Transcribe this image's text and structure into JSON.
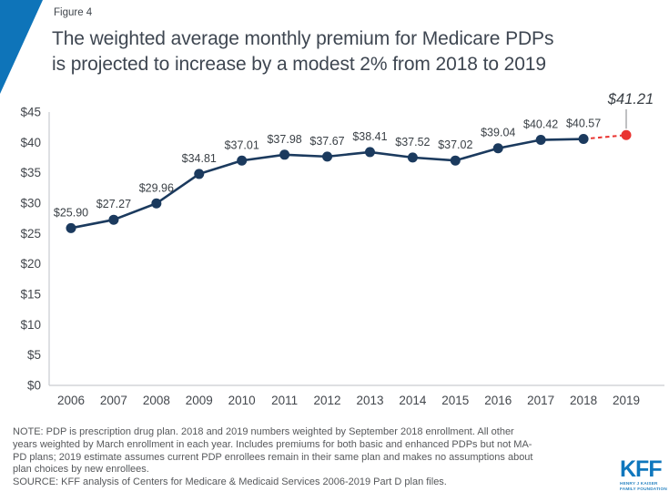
{
  "header": {
    "figure_label": "Figure 4",
    "title_lines": [
      "The weighted average monthly premium for Medicare PDPs",
      "is projected to increase by a modest 2% from 2018 to 2019"
    ]
  },
  "chart_data": {
    "type": "line",
    "title": "The weighted average monthly premium for Medicare PDPs is projected to increase by a modest 2% from 2018 to 2019",
    "x": [
      2006,
      2007,
      2008,
      2009,
      2010,
      2011,
      2012,
      2013,
      2014,
      2015,
      2016,
      2017,
      2018,
      2019
    ],
    "xtick_labels": [
      "2006",
      "2007",
      "2008",
      "2009",
      "2010",
      "2011",
      "2012",
      "2013",
      "2014",
      "2015",
      "2016",
      "2017",
      "2018",
      "2019"
    ],
    "series": [
      {
        "name": "Weighted average monthly PDP premium",
        "values": [
          25.9,
          27.27,
          29.96,
          34.81,
          37.01,
          37.98,
          37.67,
          38.41,
          37.52,
          37.02,
          39.04,
          40.42,
          40.57,
          41.21
        ]
      }
    ],
    "data_labels": [
      "$25.90",
      "$27.27",
      "$29.96",
      "$34.81",
      "$37.01",
      "$37.98",
      "$37.67",
      "$38.41",
      "$37.52",
      "$37.02",
      "$39.04",
      "$40.42",
      "$40.57",
      "$41.21"
    ],
    "projected": {
      "year": 2019,
      "value": 41.21,
      "label": "$41.21",
      "style": "red dot with dashed connector and leader line"
    },
    "ylim": [
      0,
      45
    ],
    "ytick_step": 5,
    "ytick_labels": [
      "$0",
      "$5",
      "$10",
      "$15",
      "$20",
      "$25",
      "$30",
      "$35",
      "$40",
      "$45"
    ],
    "grid": false,
    "legend": "none",
    "colors": {
      "line": "#1b3a5e",
      "projected": "#e93330",
      "axis": "#c9ccd0",
      "leader": "#8a8d90"
    }
  },
  "notes": {
    "note_lines": [
      "NOTE: PDP is prescription drug plan. 2018 and 2019 numbers weighted by September 2018 enrollment. All other",
      "years weighted by March enrollment in each year. Includes premiums for both basic and enhanced PDPs but not MA-",
      "PD plans; 2019 estimate assumes current PDP enrollees remain in their same plan and makes no assumptions about",
      "plan choices by new enrollees."
    ],
    "source": "SOURCE: KFF analysis of Centers for Medicare & Medicaid Services 2006-2019 Part D plan files."
  },
  "logo": {
    "text": "KFF",
    "subtext_lines": [
      "HENRY J KAISER",
      "FAMILY FOUNDATION"
    ]
  }
}
